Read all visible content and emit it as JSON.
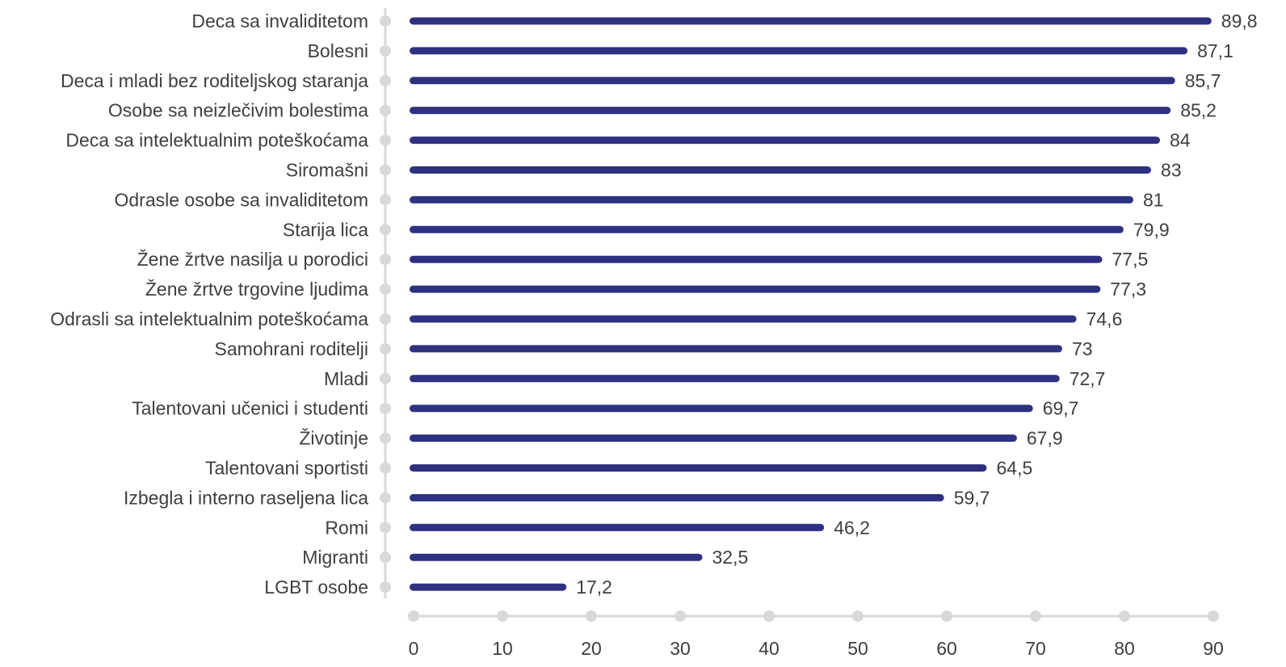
{
  "chart_data": {
    "type": "bar",
    "orientation": "horizontal",
    "categories": [
      "Deca sa invaliditetom",
      "Bolesni",
      "Deca i mladi bez roditeljskog staranja",
      "Osobe sa neizlečivim bolestima",
      "Deca sa intelektualnim poteškoćama",
      "Siromašni",
      "Odrasle osobe sa invaliditetom",
      "Starija lica",
      "Žene žrtve nasilja u porodici",
      "Žene žrtve trgovine ljudima",
      "Odrasli sa intelektualnim poteškoćama",
      "Samohrani roditelji",
      "Mladi",
      "Talentovani učenici i studenti",
      "Životinje",
      "Talentovani sportisti",
      "Izbegla i interno raseljena lica",
      "Romi",
      "Migranti",
      "LGBT osobe"
    ],
    "values": [
      89.8,
      87.1,
      85.7,
      85.2,
      84,
      83,
      81,
      79.9,
      77.5,
      77.3,
      74.6,
      73,
      72.7,
      69.7,
      67.9,
      64.5,
      59.7,
      46.2,
      32.5,
      17.2
    ],
    "value_labels": [
      "89,8",
      "87,1",
      "85,7",
      "85,2",
      "84",
      "83",
      "81",
      "79,9",
      "77,5",
      "77,3",
      "74,6",
      "73",
      "72,7",
      "69,7",
      "67,9",
      "64,5",
      "59,7",
      "46,2",
      "32,5",
      "17,2"
    ],
    "xlim": [
      0,
      90
    ],
    "x_ticks": [
      0,
      10,
      20,
      30,
      40,
      50,
      60,
      70,
      80,
      90
    ],
    "x_tick_labels": [
      "0",
      "10",
      "20",
      "30",
      "40",
      "50",
      "60",
      "70",
      "80",
      "90"
    ],
    "title": "",
    "xlabel": "",
    "ylabel": "",
    "grid": false,
    "legend": "none",
    "colors": {
      "bar": "#2e3180",
      "axis": "#d9d9d9",
      "text": "#3f3f3f"
    }
  }
}
